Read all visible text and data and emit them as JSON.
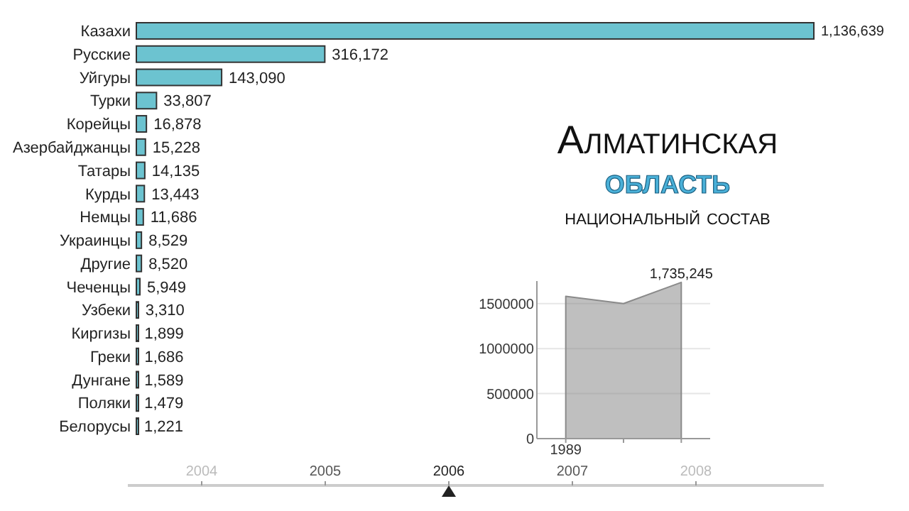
{
  "chart_data": [
    {
      "type": "bar",
      "orientation": "horizontal",
      "title": "Алматинская область",
      "subtitle": "национальный состав",
      "categories": [
        "Казахи",
        "Русские",
        "Уйгуры",
        "Турки",
        "Корейцы",
        "Азербайджанцы",
        "Татары",
        "Курды",
        "Немцы",
        "Украинцы",
        "Другие",
        "Чеченцы",
        "Узбеки",
        "Киргизы",
        "Греки",
        "Дунгане",
        "Поляки",
        "Белорусы"
      ],
      "series": [
        {
          "color": "#6cc3d0",
          "values": [
            1136639,
            316172,
            143090,
            33807,
            16878,
            15228,
            14135,
            13443,
            11686,
            8529,
            8520,
            5949,
            3310,
            1899,
            1686,
            1589,
            1479,
            1221
          ],
          "value_labels": [
            "1,136,639",
            "316,172",
            "143,090",
            "33,807",
            "16,878",
            "15,228",
            "14,135",
            "13,443",
            "11,686",
            "8,529",
            "8,520",
            "5,949",
            "3,310",
            "1,899",
            "1,686",
            "1,589",
            "1,479",
            "1,221"
          ]
        }
      ],
      "annotations": [
        "2004",
        "2005",
        "2006",
        "2007",
        "2008"
      ]
    },
    {
      "type": "area",
      "categories": [
        "1989",
        null,
        null
      ],
      "series": [
        {
          "color": "#8a8a8a",
          "values": [
            1580000,
            1500000,
            1735245
          ],
          "value_labels": [
            null,
            null,
            "1,735,245"
          ]
        }
      ],
      "ylim": [
        0,
        1750000
      ],
      "yticks": [
        0,
        500000,
        1000000,
        1500000
      ],
      "grid": "y"
    }
  ]
}
